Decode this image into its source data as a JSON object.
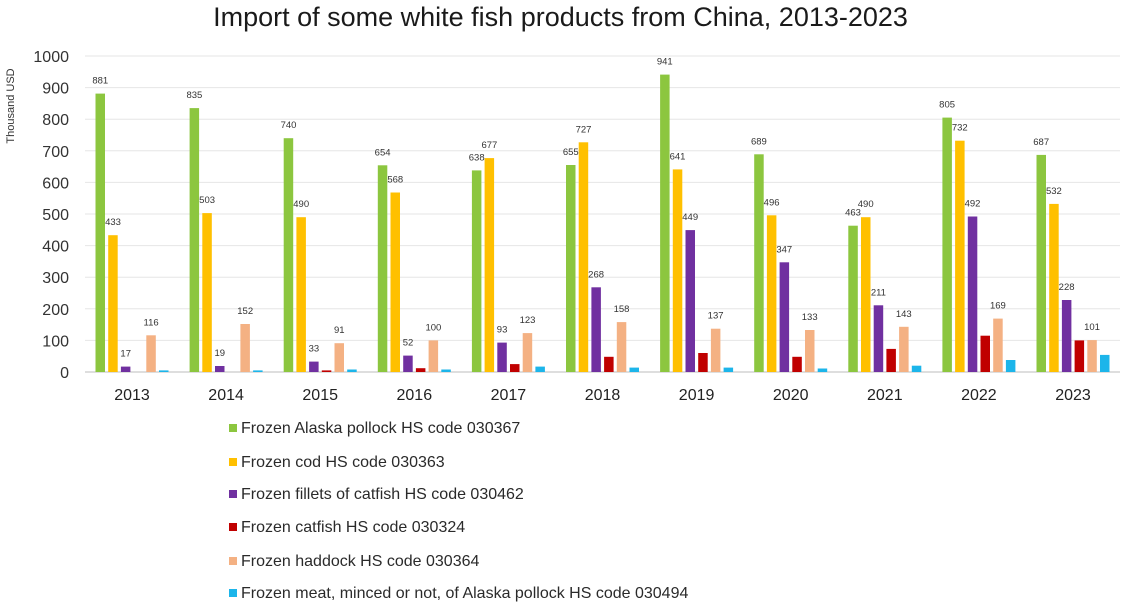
{
  "chart_data": {
    "type": "bar",
    "title": "Import of some white fish products from China, 2013-2023",
    "ylabel": "Thousand USD",
    "xlabel": "",
    "ylim": [
      0,
      1000
    ],
    "yticks": [
      0,
      100,
      200,
      300,
      400,
      500,
      600,
      700,
      800,
      900,
      1000
    ],
    "grid": "horizontal",
    "legend_position": "bottom",
    "categories": [
      "2013",
      "2014",
      "2015",
      "2016",
      "2017",
      "2018",
      "2019",
      "2020",
      "2021",
      "2022",
      "2023"
    ],
    "series": [
      {
        "name": "Frozen Alaska pollock HS code 030367",
        "color": "#8CC63F",
        "values": [
          881,
          835,
          740,
          654,
          638,
          655,
          941,
          689,
          463,
          805,
          687
        ],
        "labels": [
          "881",
          "835",
          "740",
          "654",
          "638",
          "655",
          "941",
          "689",
          "463",
          "805",
          "687"
        ]
      },
      {
        "name": "Frozen cod HS code 030363",
        "color": "#FFC000",
        "values": [
          433,
          503,
          490,
          568,
          677,
          727,
          641,
          496,
          490,
          732,
          532
        ],
        "labels": [
          "433",
          "503",
          "490",
          "568",
          "677",
          "727",
          "641",
          "496",
          "490",
          "732",
          "532"
        ]
      },
      {
        "name": "Frozen fillets of catfish HS code 030462",
        "color": "#7030A0",
        "values": [
          17,
          19,
          33,
          52,
          93,
          268,
          449,
          347,
          211,
          492,
          228
        ],
        "labels": [
          "17",
          "19",
          "33",
          "52",
          "93",
          "268",
          "449",
          "347",
          "211",
          "492",
          "228"
        ]
      },
      {
        "name": "Frozen catfish HS code 030324",
        "color": "#C00000",
        "values": [
          0,
          0,
          5,
          12,
          25,
          48,
          60,
          48,
          73,
          115,
          100
        ],
        "labels": [
          "",
          "",
          "",
          "",
          "",
          "",
          "",
          "",
          "",
          "",
          ""
        ]
      },
      {
        "name": "Frozen haddock HS code 030364",
        "color": "#F4B183",
        "values": [
          116,
          152,
          91,
          100,
          123,
          158,
          137,
          133,
          143,
          169,
          101
        ],
        "labels": [
          "116",
          "152",
          "91",
          "100",
          "123",
          "158",
          "137",
          "133",
          "143",
          "169",
          "101"
        ]
      },
      {
        "name": "Frozen meat, minced or not, of Alaska pollock HS code 030494",
        "color": "#1CB5EA",
        "values": [
          5,
          5,
          8,
          8,
          17,
          14,
          14,
          11,
          20,
          38,
          54
        ],
        "labels": [
          "",
          "",
          "",
          "",
          "",
          "",
          "",
          "",
          "",
          "",
          ""
        ]
      }
    ]
  }
}
